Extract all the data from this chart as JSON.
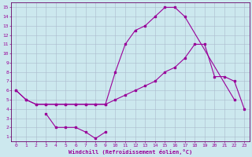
{
  "xlabel": "Windchill (Refroidissement éolien,°C)",
  "bg_color": "#cce8ee",
  "grid_color": "#aabbcc",
  "line_color": "#990099",
  "spine_color": "#660066",
  "xlim": [
    -0.5,
    23.5
  ],
  "ylim": [
    0.5,
    15.5
  ],
  "xticks": [
    0,
    1,
    2,
    3,
    4,
    5,
    6,
    7,
    8,
    9,
    10,
    11,
    12,
    13,
    14,
    15,
    16,
    17,
    18,
    19,
    20,
    21,
    22,
    23
  ],
  "yticks": [
    1,
    2,
    3,
    4,
    5,
    6,
    7,
    8,
    9,
    10,
    11,
    12,
    13,
    14,
    15
  ],
  "line1_x": [
    0,
    1,
    2,
    3,
    4,
    5,
    6,
    7,
    8,
    9,
    10,
    11,
    12,
    13,
    14,
    15,
    16,
    17,
    22
  ],
  "line1_y": [
    6,
    5,
    4.5,
    4.5,
    4.5,
    4.5,
    4.5,
    4.5,
    4.5,
    4.5,
    8,
    11,
    12.5,
    13,
    14,
    15,
    15,
    14,
    5
  ],
  "line2_x": [
    0,
    1,
    2,
    3,
    4,
    5,
    6,
    7,
    8,
    9,
    10,
    11,
    12,
    13,
    14,
    15,
    16,
    17,
    18,
    19,
    20,
    21,
    22,
    23
  ],
  "line2_y": [
    6,
    5,
    4.5,
    4.5,
    4.5,
    4.5,
    4.5,
    4.5,
    4.5,
    4.5,
    5,
    5.5,
    6,
    6.5,
    7,
    8,
    8.5,
    9.5,
    11,
    11,
    7.5,
    7.5,
    7,
    4
  ],
  "line3_x": [
    3,
    4,
    5,
    6,
    7,
    8,
    9
  ],
  "line3_y": [
    3.5,
    2,
    2,
    2,
    1.5,
    0.8,
    1.5
  ]
}
